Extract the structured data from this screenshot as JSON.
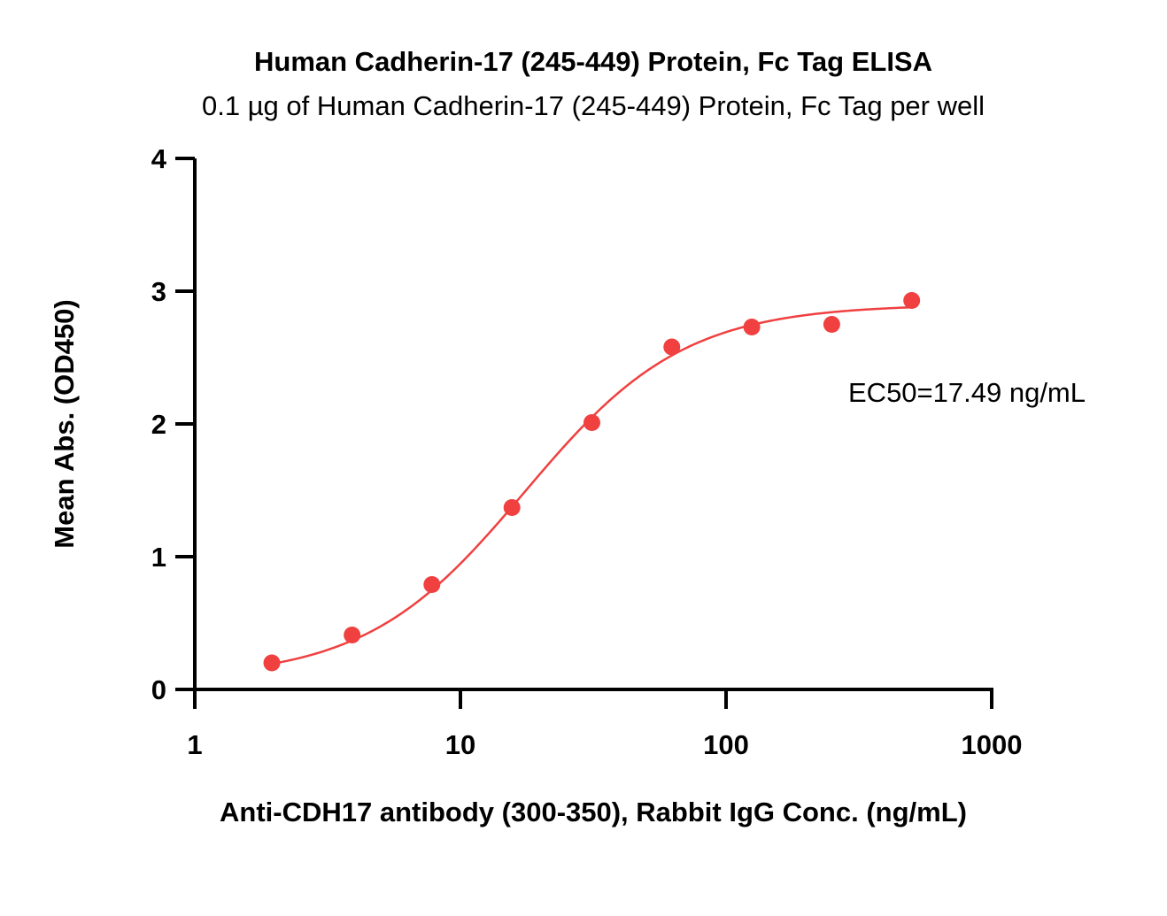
{
  "chart_data": {
    "type": "scatter",
    "title": "Human Cadherin-17 (245-449) Protein, Fc Tag ELISA",
    "subtitle": "0.1 µg of Human Cadherin-17 (245-449) Protein, Fc Tag per well",
    "xlabel": "Anti-CDH17 antibody (300-350), Rabbit IgG Conc. (ng/mL)",
    "ylabel": "Mean Abs. (OD450)",
    "xscale": "log",
    "xlim": [
      1,
      1000
    ],
    "ylim": [
      0,
      4
    ],
    "x_ticks": [
      {
        "value": 1,
        "label": "1"
      },
      {
        "value": 10,
        "label": "10"
      },
      {
        "value": 100,
        "label": "100"
      },
      {
        "value": 1000,
        "label": "1000"
      }
    ],
    "y_ticks": [
      {
        "value": 0,
        "label": "0"
      },
      {
        "value": 1,
        "label": "1"
      },
      {
        "value": 2,
        "label": "2"
      },
      {
        "value": 3,
        "label": "3"
      },
      {
        "value": 4,
        "label": "4"
      }
    ],
    "series": [
      {
        "color": "#f04040",
        "x": [
          1.95,
          3.91,
          7.81,
          15.63,
          31.25,
          62.5,
          125,
          250,
          500
        ],
        "y": [
          0.2,
          0.41,
          0.79,
          1.37,
          2.01,
          2.58,
          2.73,
          2.75,
          2.93
        ],
        "fit": {
          "model": "4PL",
          "bottom": 0.08,
          "top": 2.9,
          "ec50": 17.49,
          "hill": 1.45
        }
      }
    ],
    "annotations": [
      "EC50=17.49 ng/mL"
    ],
    "grid": false,
    "legend": "none"
  }
}
